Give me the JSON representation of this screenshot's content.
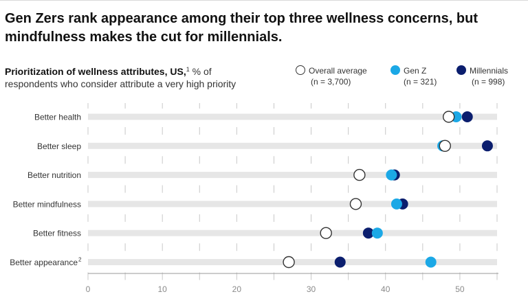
{
  "title": "Gen Zers rank appearance among their top three wellness concerns, but mindfulness makes the cut for millennials.",
  "subtitle": {
    "bold": "Prioritization of wellness attributes, US,",
    "footnote": "1",
    "line1_rest": " % of",
    "line2": "respondents who consider attribute a very high priority"
  },
  "legend": [
    {
      "name": "Overall average",
      "n": "(n = 3,700)",
      "color": "#ffffff",
      "stroke": "#333333"
    },
    {
      "name": "Gen Z",
      "n": "(n = 321)",
      "color": "#1ba8e6",
      "stroke": "#1ba8e6"
    },
    {
      "name": "Millennials",
      "n": "(n = 998)",
      "color": "#0b1e6e",
      "stroke": "#0b1e6e"
    }
  ],
  "chart_data": {
    "type": "dot",
    "title": "Prioritization of wellness attributes, US, % of respondents who consider attribute a very high priority",
    "categories": [
      "Better health",
      "Better sleep",
      "Better nutrition",
      "Better mindfulness",
      "Better fitness",
      "Better appearance"
    ],
    "category_footnotes": [
      "",
      "",
      "",
      "",
      "",
      "2"
    ],
    "series": [
      {
        "name": "Overall average",
        "values": [
          48.5,
          48,
          36.5,
          36,
          32,
          27
        ]
      },
      {
        "name": "Gen Z",
        "values": [
          49.5,
          47.7,
          40.8,
          41.5,
          38.9,
          46.1
        ]
      },
      {
        "name": "Millennials",
        "values": [
          51,
          53.7,
          41.2,
          42.3,
          37.7,
          33.9
        ]
      }
    ],
    "xlim": [
      0,
      55
    ],
    "xticks": [
      0,
      10,
      20,
      30,
      40,
      50
    ],
    "xlabel": "",
    "ylabel": "",
    "colors": {
      "track": "#e6e6e6",
      "grid": "#c8c8c8",
      "axis": "#9a9a9a",
      "tick_label": "#8a8a8a"
    }
  }
}
